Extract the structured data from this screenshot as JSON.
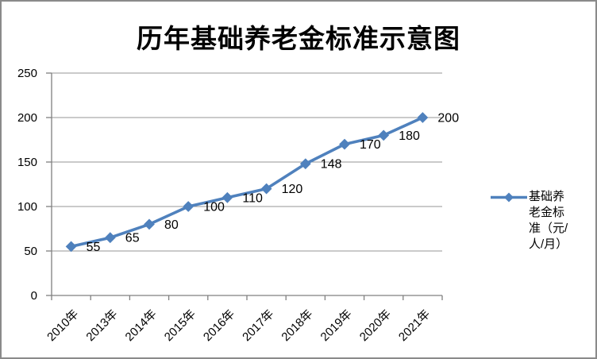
{
  "title": "历年基础养老金标准示意图",
  "legend": {
    "label": "基础养老金标准（元/人/月）",
    "marker_color": "#4F81BD"
  },
  "frame": {
    "border_color": "#8a8a8a",
    "background": "#ffffff"
  },
  "chart_data": {
    "type": "line",
    "title": "历年基础养老金标准示意图",
    "categories": [
      "2010年",
      "2013年",
      "2014年",
      "2015年",
      "2016年",
      "2017年",
      "2018年",
      "2019年",
      "2020年",
      "2021年"
    ],
    "series": [
      {
        "name": "基础养老金标准（元/人/月）",
        "values": [
          55,
          65,
          80,
          100,
          110,
          120,
          148,
          170,
          180,
          200
        ],
        "color": "#4F81BD",
        "marker": "diamond"
      }
    ],
    "xlabel": "",
    "ylabel": "",
    "ylim": [
      0,
      250
    ],
    "yticks": [
      0,
      50,
      100,
      150,
      200,
      250
    ],
    "data_labels": true,
    "data_label_color": "#000000",
    "grid": true,
    "gridline_color": "#969696",
    "axis_color": "#808080",
    "legend_position": "right",
    "x_tick_label_rotation": -45
  }
}
